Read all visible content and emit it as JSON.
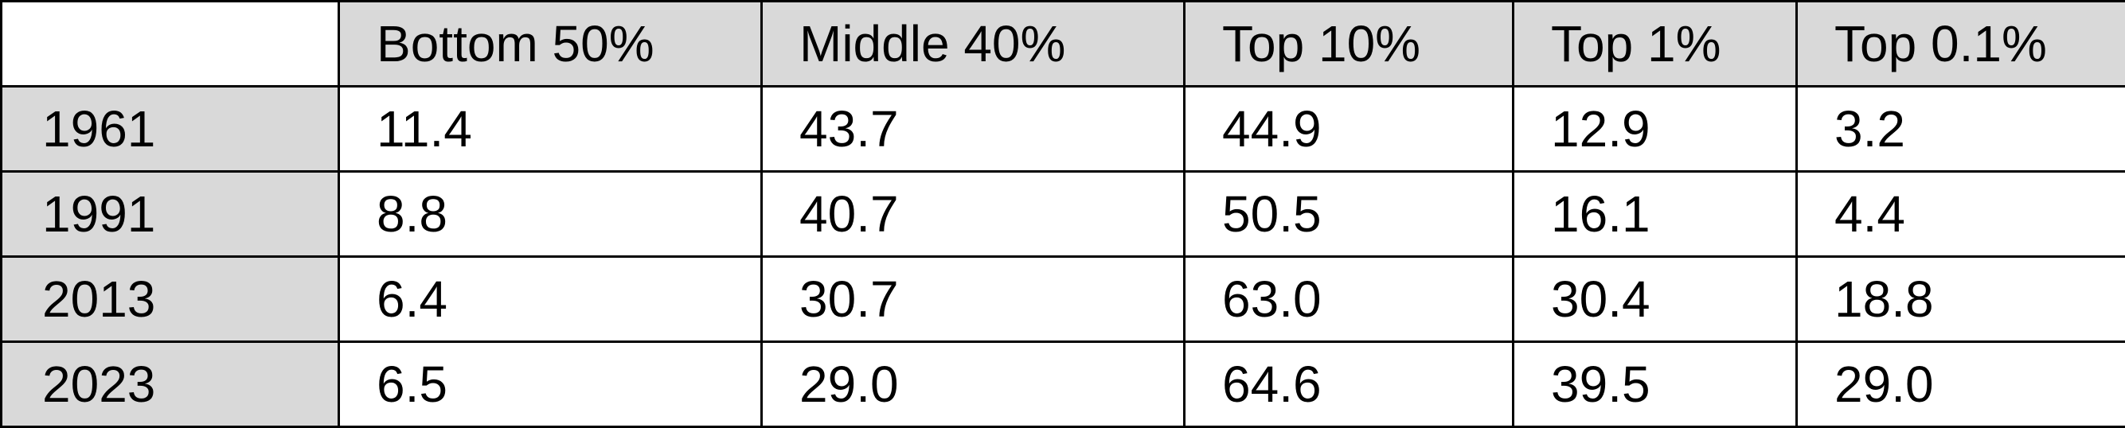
{
  "table": {
    "columns": [
      "Bottom 50%",
      "Middle 40%",
      "Top 10%",
      "Top 1%",
      "Top 0.1%"
    ],
    "rows": [
      [
        "1961",
        "11.4",
        "43.7",
        "44.9",
        "12.9",
        "3.2"
      ],
      [
        "1991",
        "8.8",
        "40.7",
        "50.5",
        "16.1",
        "4.4"
      ],
      [
        "2013",
        "6.4",
        "30.7",
        "63.0",
        "30.4",
        "18.8"
      ],
      [
        "2023",
        "6.5",
        "29.0",
        "64.6",
        "39.5",
        "29.0"
      ]
    ]
  }
}
